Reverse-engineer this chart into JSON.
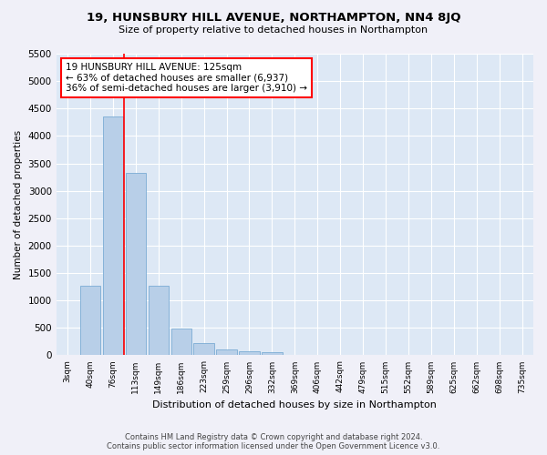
{
  "title": "19, HUNSBURY HILL AVENUE, NORTHAMPTON, NN4 8JQ",
  "subtitle": "Size of property relative to detached houses in Northampton",
  "xlabel": "Distribution of detached houses by size in Northampton",
  "ylabel": "Number of detached properties",
  "footer_line1": "Contains HM Land Registry data © Crown copyright and database right 2024.",
  "footer_line2": "Contains public sector information licensed under the Open Government Licence v3.0.",
  "categories": [
    "3sqm",
    "40sqm",
    "76sqm",
    "113sqm",
    "149sqm",
    "186sqm",
    "223sqm",
    "259sqm",
    "296sqm",
    "332sqm",
    "369sqm",
    "406sqm",
    "442sqm",
    "479sqm",
    "515sqm",
    "552sqm",
    "589sqm",
    "625sqm",
    "662sqm",
    "698sqm",
    "735sqm"
  ],
  "values": [
    0,
    1270,
    4350,
    3320,
    1270,
    490,
    220,
    100,
    80,
    60,
    0,
    0,
    0,
    0,
    0,
    0,
    0,
    0,
    0,
    0,
    0
  ],
  "bar_color": "#b8cfe8",
  "bar_edge_color": "#7aacd4",
  "background_color": "#dde8f5",
  "grid_color": "#ffffff",
  "fig_facecolor": "#f0f0f8",
  "vline_position": 2.5,
  "vline_color": "red",
  "annotation_text": "19 HUNSBURY HILL AVENUE: 125sqm\n← 63% of detached houses are smaller (6,937)\n36% of semi-detached houses are larger (3,910) →",
  "annotation_box_edgecolor": "red",
  "ylim": [
    0,
    5500
  ],
  "yticks": [
    0,
    500,
    1000,
    1500,
    2000,
    2500,
    3000,
    3500,
    4000,
    4500,
    5000,
    5500
  ]
}
